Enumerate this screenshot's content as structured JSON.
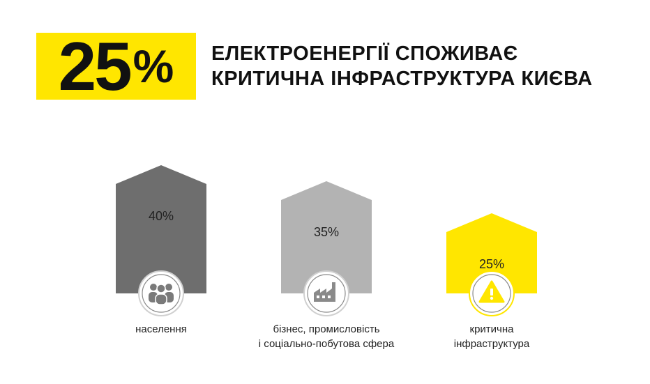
{
  "header": {
    "big_value": "25",
    "big_unit": "%",
    "line1": "ЕЛЕКТРОЕНЕРГІЇ СПОЖИВАЄ",
    "line2": "КРИТИЧНА ІНФРАСТРУКТУРА КИЄВА"
  },
  "colors": {
    "accent": "#ffe600",
    "dark_gray": "#6e6e6e",
    "light_gray": "#b3b3b3",
    "icon_circle": "#ffffff"
  },
  "chart_data": {
    "type": "bar",
    "categories": [
      "населення",
      "бізнес, промисловість і соціально-побутова сфера",
      "критична інфраструктура"
    ],
    "values": [
      40,
      35,
      25
    ],
    "value_labels": [
      "40%",
      "35%",
      "25%"
    ],
    "label_lines": [
      [
        "населення"
      ],
      [
        "бізнес, промисловість",
        "і соціально-побутова сфера"
      ],
      [
        "критична",
        "інфраструктура"
      ]
    ],
    "bar_colors": [
      "#6e6e6e",
      "#b3b3b3",
      "#ffe600"
    ],
    "icons": [
      "people-icon",
      "factory-icon",
      "warning-icon"
    ],
    "ylim": [
      0,
      40
    ]
  }
}
